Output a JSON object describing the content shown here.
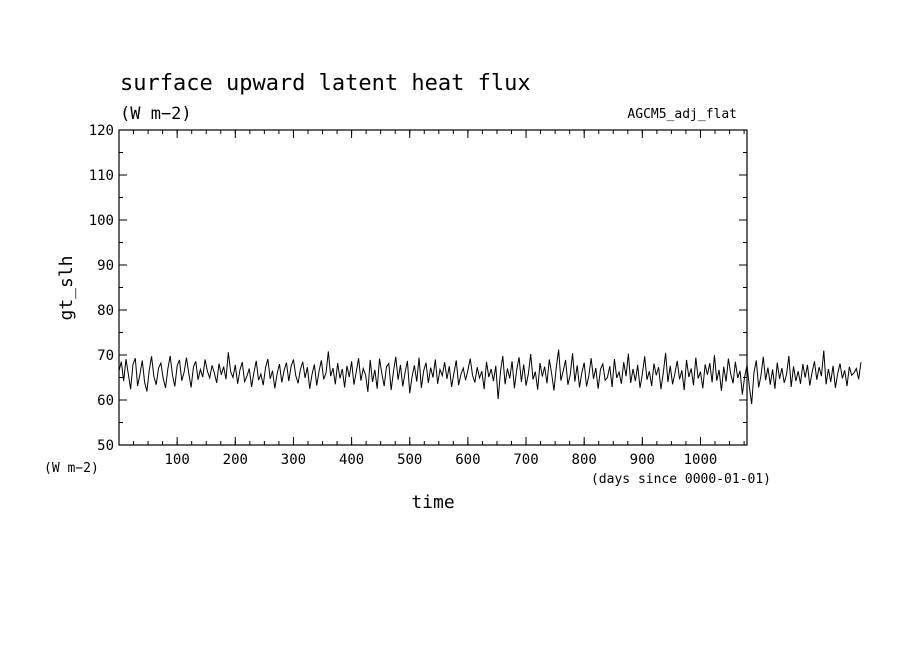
{
  "chart_data": {
    "type": "line",
    "title": "surface upward latent heat flux",
    "units": "(W m−2)",
    "experiment": "AGCM5_adj_flat",
    "xlabel": "time",
    "xunits": "(days since 0000-01-01)",
    "ylabel": "gt_slh",
    "yunits": "(W m−2)",
    "xlim": [
      0,
      1080
    ],
    "ylim": [
      50,
      120
    ],
    "x_major_ticks": [
      100,
      200,
      300,
      400,
      500,
      600,
      700,
      800,
      900,
      1000
    ],
    "x_tick_labels": [
      "100",
      "200",
      "300",
      "400",
      "500",
      "600",
      "700",
      "800",
      "900",
      "1000"
    ],
    "x_minor_step": 25,
    "y_major_ticks": [
      50,
      60,
      70,
      80,
      90,
      100,
      110,
      120
    ],
    "y_tick_labels": [
      "50",
      "60",
      "70",
      "80",
      "90",
      "100",
      "110",
      "120"
    ],
    "y_minor_step": 5,
    "grid": false,
    "legend": "none",
    "line_color": "#000000",
    "series": [
      {
        "x_start": 0,
        "x_step": 4,
        "values": [
          66.5,
          68.5,
          64.2,
          69.1,
          65.8,
          62.4,
          67.9,
          69.3,
          63.1,
          65.7,
          68.8,
          64.0,
          61.9,
          66.6,
          69.7,
          65.2,
          63.4,
          67.1,
          68.2,
          64.8,
          62.7,
          66.9,
          69.8,
          65.5,
          63.0,
          67.6,
          68.9,
          64.3,
          66.2,
          69.4,
          65.9,
          62.8,
          67.3,
          68.6,
          64.5,
          66.8,
          65.1,
          69.0,
          66.4,
          64.9,
          67.7,
          66.0,
          63.8,
          68.1,
          65.6,
          67.4,
          64.6,
          70.6,
          66.3,
          65.0,
          67.8,
          63.6,
          66.7,
          68.4,
          64.1,
          65.3,
          67.0,
          62.9,
          66.1,
          68.7,
          64.4,
          65.8,
          63.3,
          67.2,
          69.1,
          64.7,
          66.5,
          62.6,
          65.9,
          68.0,
          63.9,
          66.6,
          68.3,
          64.2,
          67.5,
          69.0,
          65.4,
          63.7,
          66.8,
          68.5,
          64.9,
          67.3,
          62.5,
          65.7,
          67.9,
          63.2,
          66.4,
          68.8,
          64.6,
          66.0,
          70.8,
          65.3,
          67.1,
          63.5,
          68.2,
          64.8,
          66.9,
          62.8,
          67.6,
          65.1,
          68.6,
          63.4,
          66.2,
          69.3,
          64.3,
          67.0,
          65.6,
          61.8,
          68.9,
          64.0,
          66.7,
          62.5,
          69.2,
          65.9,
          63.1,
          67.4,
          68.1,
          62.2,
          66.3,
          69.6,
          64.5,
          67.8,
          63.0,
          66.1,
          68.7,
          61.5,
          65.2,
          67.7,
          64.1,
          69.4,
          62.7,
          66.5,
          68.3,
          63.8,
          67.2,
          65.0,
          69.0,
          63.6,
          66.8,
          65.4,
          68.4,
          64.7,
          67.5,
          62.9,
          66.0,
          68.8,
          63.3,
          65.7,
          67.1,
          64.4,
          66.6,
          69.2,
          65.5,
          63.9,
          67.3,
          64.9,
          66.4,
          62.4,
          68.5,
          65.1,
          66.9,
          64.2,
          67.6,
          60.2,
          66.2,
          69.8,
          63.5,
          67.0,
          64.8,
          68.6,
          62.6,
          66.7,
          69.5,
          64.0,
          67.9,
          63.2,
          65.8,
          70.2,
          64.6,
          66.3,
          62.3,
          68.2,
          65.2,
          67.4,
          63.7,
          69.0,
          65.9,
          62.1,
          67.2,
          71.2,
          64.3,
          66.5,
          68.9,
          63.4,
          65.6,
          70.4,
          64.1,
          67.7,
          62.8,
          66.1,
          68.3,
          63.0,
          65.4,
          69.3,
          64.7,
          67.1,
          62.5,
          66.8,
          68.0,
          64.4,
          65.0,
          67.5,
          62.9,
          69.1,
          64.9,
          66.2,
          63.6,
          68.4,
          65.3,
          70.3,
          63.8,
          66.9,
          64.2,
          67.8,
          62.7,
          65.7,
          69.7,
          64.5,
          66.4,
          63.1,
          68.1,
          65.5,
          67.3,
          62.4,
          66.0,
          70.5,
          64.0,
          67.6,
          63.5,
          65.9,
          68.7,
          64.6,
          66.6,
          62.2,
          68.9,
          65.1,
          67.0,
          63.3,
          69.4,
          64.8,
          66.3,
          62.6,
          67.9,
          65.6,
          68.2,
          63.9,
          70.0,
          64.3,
          66.7,
          62.0,
          67.4,
          64.1,
          69.2,
          65.8,
          63.7,
          68.5,
          64.9,
          66.5,
          61.2,
          65.2,
          67.7,
          63.0,
          59.1,
          66.1,
          68.8,
          62.8,
          65.4,
          69.6,
          64.4,
          67.2,
          63.4,
          66.8,
          62.5,
          68.3,
          64.7,
          67.1,
          63.8,
          65.7,
          69.8,
          62.9,
          67.5,
          64.2,
          66.4,
          63.6,
          68.0,
          65.0,
          67.8,
          63.2,
          66.2,
          68.6,
          64.5,
          67.3,
          65.3,
          71.0,
          63.5,
          66.9,
          64.0,
          67.6,
          62.7,
          65.9,
          68.1,
          64.8,
          66.6,
          63.1,
          67.4,
          65.5,
          66.0,
          67.0,
          64.6,
          68.4
        ]
      }
    ]
  }
}
